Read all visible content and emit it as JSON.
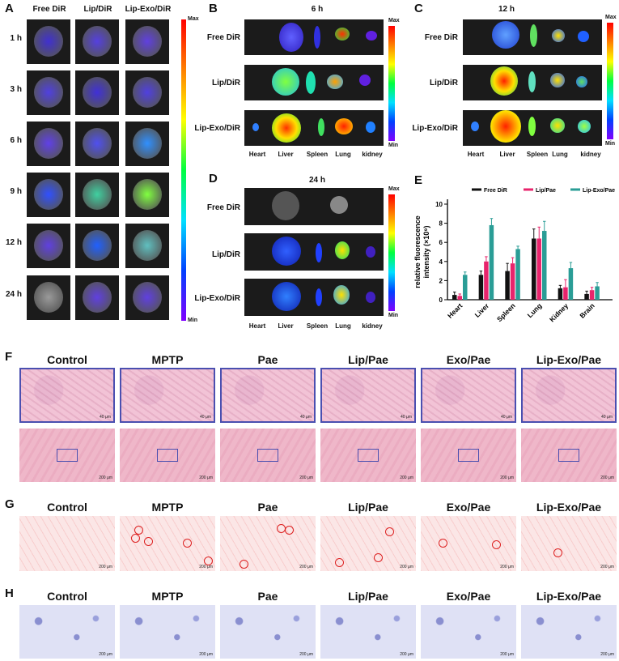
{
  "panels": {
    "A": "A",
    "B": "B",
    "C": "C",
    "D": "D",
    "E": "E",
    "F": "F",
    "G": "G",
    "H": "H"
  },
  "panelA": {
    "columns": [
      "Free DiR",
      "Lip/DiR",
      "Lip-Exo/DiR"
    ],
    "rows": [
      "1 h",
      "3 h",
      "6 h",
      "9 h",
      "12 h",
      "24 h"
    ],
    "colorbar": {
      "max": "Max",
      "min": "Min"
    }
  },
  "panelB": {
    "title": "6 h",
    "rows": [
      "Free DiR",
      "Lip/DiR",
      "Lip-Exo/DiR"
    ],
    "organs": [
      "Heart",
      "Liver",
      "Spleen",
      "Lung",
      "kidney"
    ],
    "colorbar": {
      "max": "Max",
      "min": "Min"
    }
  },
  "panelC": {
    "title": "12 h",
    "rows": [
      "Free DiR",
      "Lip/DiR",
      "Lip-Exo/DiR"
    ],
    "organs": [
      "Heart",
      "Liver",
      "Spleen",
      "Lung",
      "kidney"
    ],
    "colorbar": {
      "max": "Max",
      "min": "Min"
    }
  },
  "panelD": {
    "title": "24 h",
    "rows": [
      "Free DiR",
      "Lip/DiR",
      "Lip-Exo/DiR"
    ],
    "organs": [
      "Heart",
      "Liver",
      "Spleen",
      "Lung",
      "kidney"
    ],
    "colorbar": {
      "max": "Max",
      "min": "Min"
    }
  },
  "chart_data": {
    "type": "bar",
    "categories": [
      "Heart",
      "Liver",
      "Spleen",
      "Lung",
      "Kidney",
      "Brain"
    ],
    "series": [
      {
        "name": "Free DiR",
        "color": "#111111",
        "values": [
          0.5,
          2.6,
          3.0,
          6.4,
          1.2,
          0.6
        ],
        "errors": [
          0.3,
          0.4,
          0.8,
          1.0,
          0.3,
          0.3
        ]
      },
      {
        "name": "Lip/Pae",
        "color": "#e8246c",
        "values": [
          0.4,
          4.0,
          3.8,
          6.4,
          1.3,
          1.0
        ],
        "errors": [
          0.2,
          0.5,
          0.6,
          1.2,
          0.8,
          0.3
        ]
      },
      {
        "name": "Lip-Exo/Pae",
        "color": "#2a9d96",
        "values": [
          2.6,
          7.8,
          5.3,
          7.2,
          3.3,
          1.4
        ],
        "errors": [
          0.3,
          0.7,
          0.3,
          1.0,
          0.6,
          0.4
        ]
      }
    ],
    "ylabel_line1": "relative fluorescence",
    "ylabel_line2": "intensity (×10⁹)",
    "ylim": [
      0,
      10
    ],
    "yticks": [
      "0",
      "2",
      "4",
      "6",
      "8",
      "10"
    ],
    "legend_position": "top"
  },
  "histology": {
    "groups": [
      "Control",
      "MPTP",
      "Pae",
      "Lip/Pae",
      "Exo/Pae",
      "Lip-Exo/Pae"
    ],
    "scale_small": "40 μm",
    "scale_large": "200 μm"
  }
}
